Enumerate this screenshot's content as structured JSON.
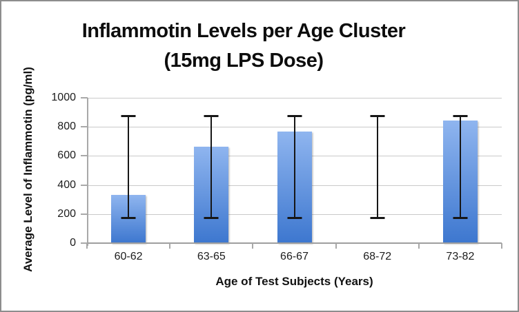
{
  "chart_data": {
    "type": "bar",
    "title_line1": "Inflammotin Levels per Age Cluster",
    "title_line2": "(15mg LPS Dose)",
    "xlabel": "Age of Test Subjects (Years)",
    "ylabel": "Average Level of Inflammotin (pg/ml)",
    "categories": [
      "60-62",
      "63-65",
      "66-67",
      "68-72",
      "73-82"
    ],
    "values": [
      330,
      665,
      770,
      null,
      845
    ],
    "error_bars": [
      {
        "low": 170,
        "high": 875
      },
      {
        "low": 170,
        "high": 875
      },
      {
        "low": 170,
        "high": 875
      },
      {
        "low": 170,
        "high": 875
      },
      {
        "low": 170,
        "high": 875
      }
    ],
    "y_ticks": [
      0,
      200,
      400,
      600,
      800,
      1000
    ],
    "ylim": [
      0,
      1000
    ],
    "grid": true,
    "legend": "none",
    "colors": {
      "bar_gradient_top": "#8fb5ef",
      "bar_gradient_bottom": "#3d77cf",
      "error_bar": "#161616",
      "gridline": "#c9c9c9",
      "axis_line": "#a8a8a8",
      "frame_border": "#8d8d8d",
      "text": "#0d0d0d"
    }
  }
}
